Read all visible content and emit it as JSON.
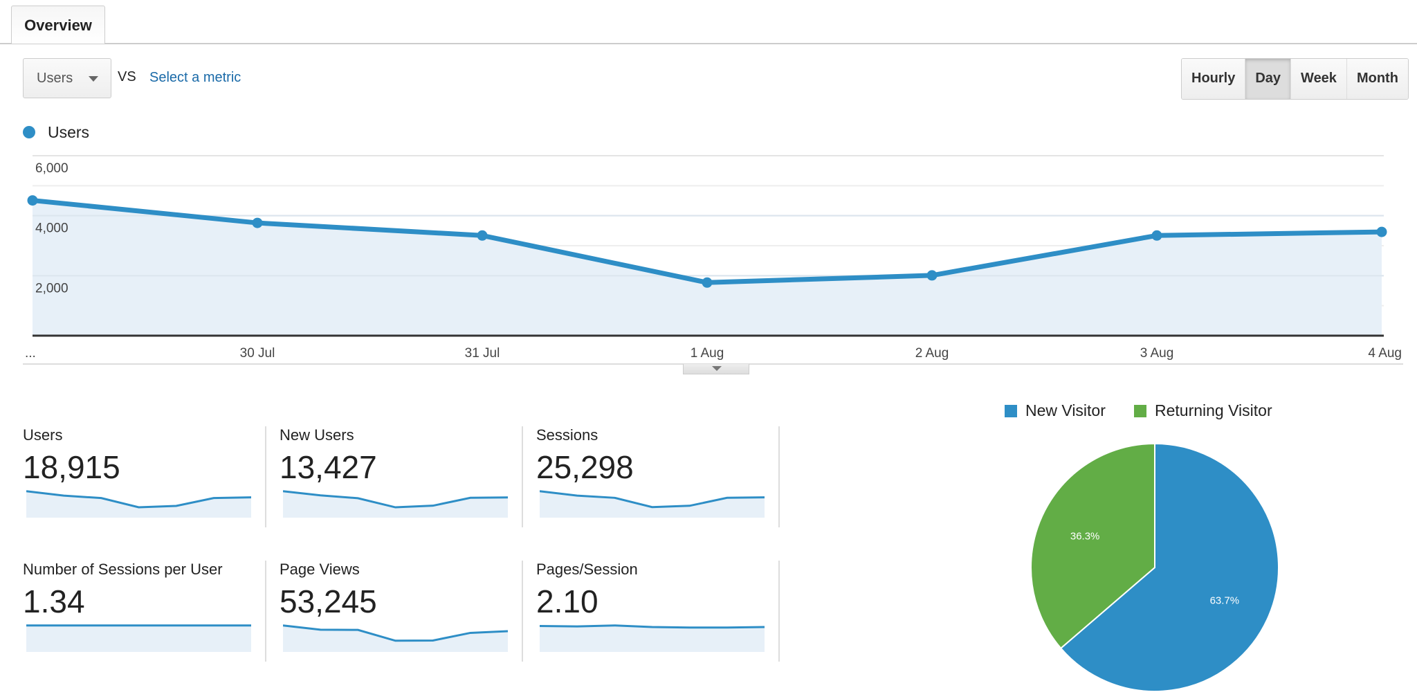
{
  "tabs": [
    {
      "label": "Overview",
      "active": true
    }
  ],
  "toolbar": {
    "metric_select": "Users",
    "vs_label": "VS",
    "compare_link": "Select a metric",
    "granularity": [
      {
        "label": "Hourly",
        "active": false
      },
      {
        "label": "Day",
        "active": true
      },
      {
        "label": "Week",
        "active": false
      },
      {
        "label": "Month",
        "active": false
      }
    ]
  },
  "colors": {
    "series": "#2e8ec6",
    "fill": "#e7f0f8",
    "new_visitor": "#2e8ec6",
    "returning_visitor": "#62ad46"
  },
  "chart_data": [
    {
      "type": "area",
      "legend": "Users",
      "x": [
        "...",
        "30 Jul",
        "31 Jul",
        "1 Aug",
        "2 Aug",
        "3 Aug",
        "4 Aug"
      ],
      "series": [
        {
          "name": "Users",
          "values": [
            4510,
            3760,
            3340,
            1770,
            2010,
            3340,
            3460
          ]
        }
      ],
      "yticks": [
        "6,000",
        "4,000",
        "2,000"
      ],
      "ylim": [
        0,
        6000
      ],
      "grid": true
    },
    {
      "type": "pie",
      "legend_position": "top",
      "slices": [
        {
          "label": "New Visitor",
          "value": 63.7,
          "text": "63.7%"
        },
        {
          "label": "Returning Visitor",
          "value": 36.3,
          "text": "36.3%"
        }
      ]
    }
  ],
  "metrics": [
    {
      "label": "Users",
      "value": "18,915",
      "spark": [
        4510,
        3760,
        3340,
        1770,
        2010,
        3340,
        3460
      ]
    },
    {
      "label": "New Users",
      "value": "13,427",
      "spark": [
        3200,
        2700,
        2350,
        1250,
        1450,
        2400,
        2450
      ]
    },
    {
      "label": "Sessions",
      "value": "25,298",
      "spark": [
        6000,
        5000,
        4500,
        2400,
        2700,
        4500,
        4600
      ]
    },
    {
      "label": "Number of Sessions per User",
      "value": "1.34",
      "spark": [
        1.34,
        1.34,
        1.34,
        1.34,
        1.34,
        1.34,
        1.34
      ]
    },
    {
      "label": "Page Views",
      "value": "53,245",
      "spark": [
        12500,
        10500,
        10400,
        5300,
        5400,
        9000,
        9800
      ]
    },
    {
      "label": "Pages/Session",
      "value": "2.10",
      "spark": [
        2.14,
        2.1,
        2.18,
        2.05,
        2.01,
        2.01,
        2.05
      ]
    }
  ]
}
